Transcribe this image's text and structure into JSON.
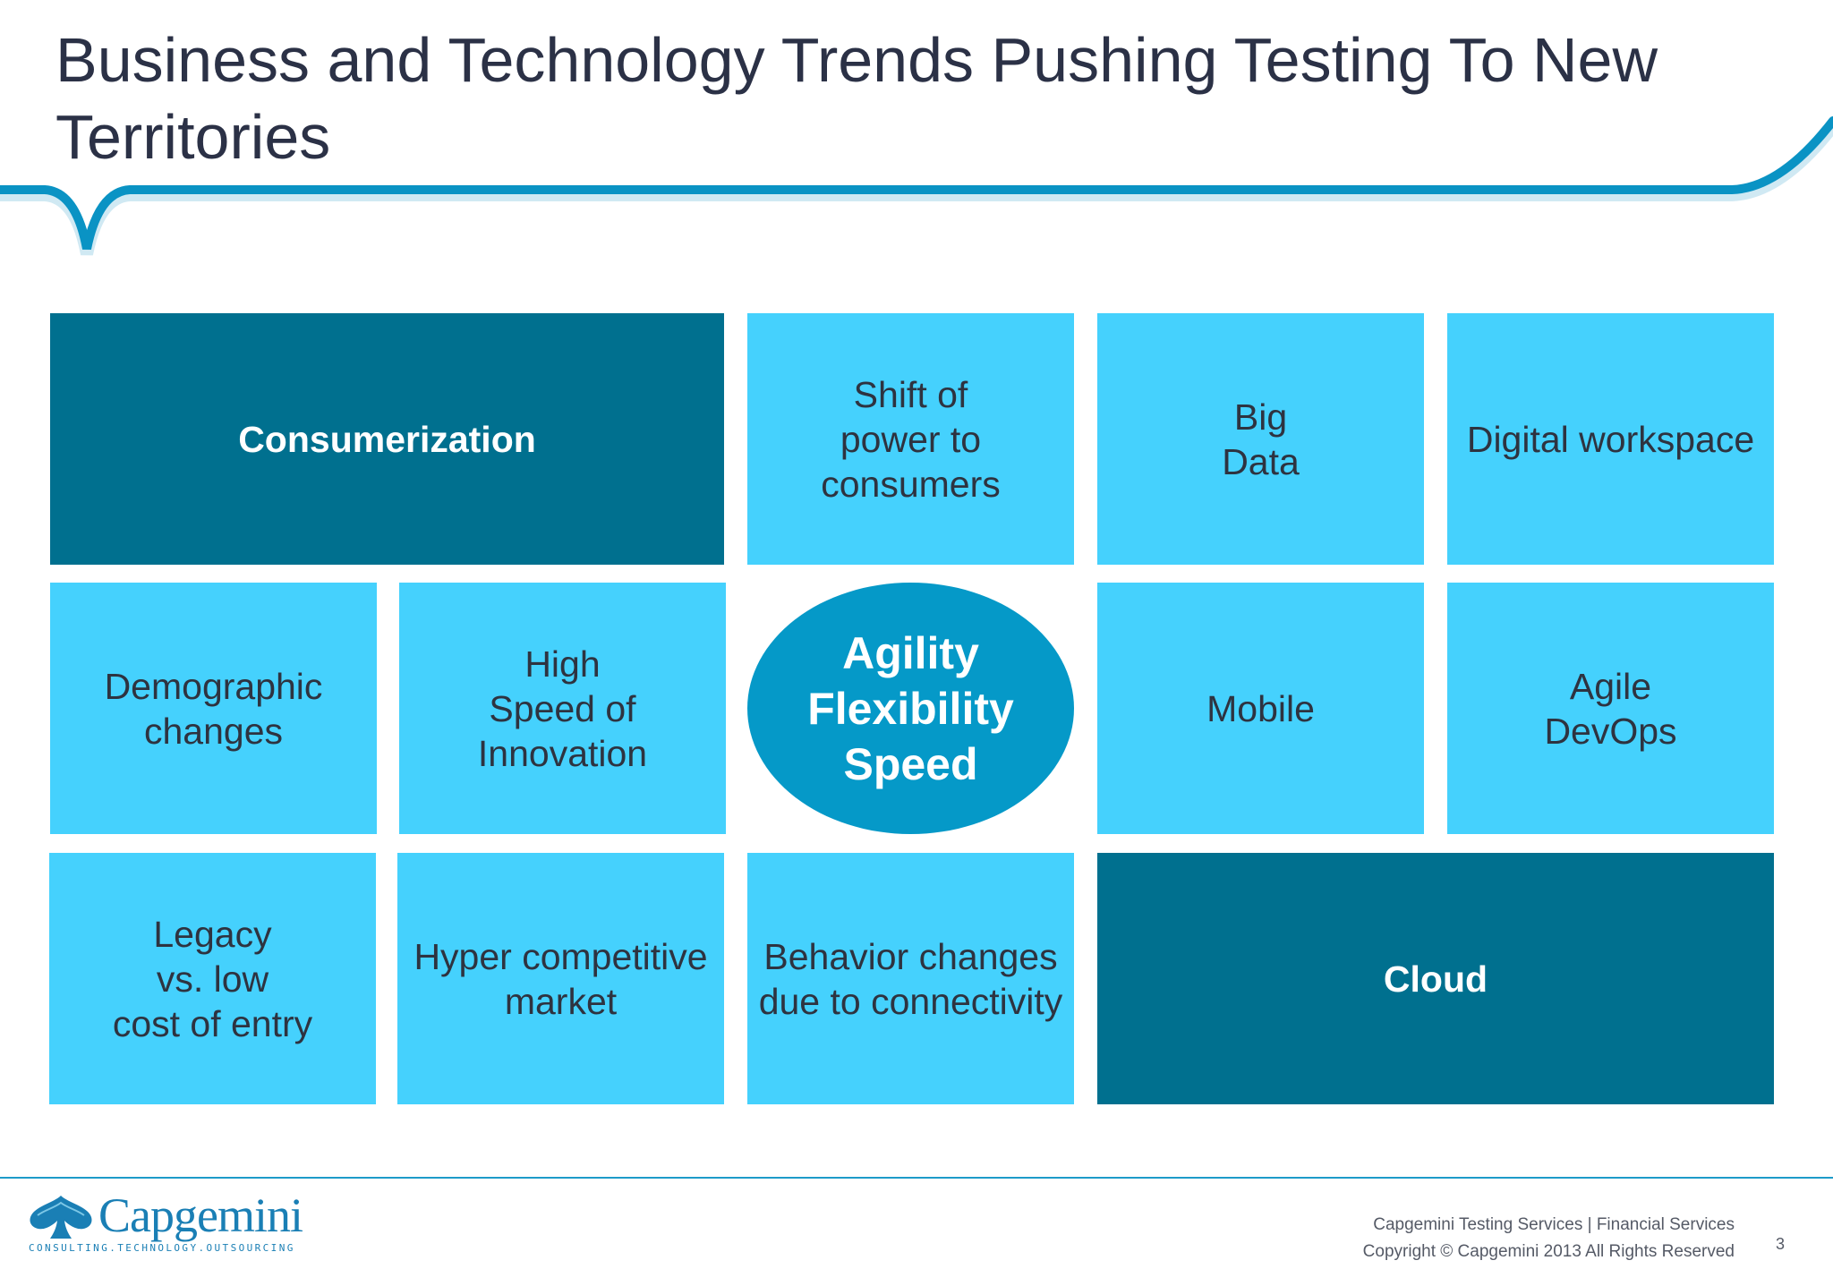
{
  "slide": {
    "title": "Business and Technology Trends Pushing Testing To New Territories",
    "tiles": {
      "consumerization": "Consumerization",
      "shift_of_power": [
        "Shift of",
        "power to",
        "consumers"
      ],
      "big_data": [
        "Big",
        "Data"
      ],
      "digital_workspace": "Digital workspace",
      "demographic_changes": [
        "Demographic",
        "changes"
      ],
      "high_speed_innovation": [
        "High",
        "Speed of",
        "Innovation"
      ],
      "mobile": "Mobile",
      "agile_devops": [
        "Agile",
        "DevOps"
      ],
      "legacy": [
        "Legacy",
        "vs. low",
        "cost of entry"
      ],
      "hyper_competitive": [
        "Hyper competitive",
        "market"
      ],
      "behavior_changes": [
        "Behavior changes",
        "due to connectivity"
      ],
      "cloud": "Cloud"
    },
    "center": [
      "Agility",
      "Flexibility",
      "Speed"
    ]
  },
  "footer": {
    "logo_text": "Capgemini",
    "logo_tagline": "CONSULTING.TECHNOLOGY.OUTSOURCING",
    "services": "Capgemini Testing Services |  Financial Services",
    "copyright": "Copyright © Capgemini 2013 All Rights Reserved",
    "page_number": "3"
  },
  "colors": {
    "tile_light": "#45d1fd",
    "tile_dark": "#00708f",
    "oval": "#0599c8",
    "header_curve": "#0a93c4",
    "title_text": "#2b3146"
  }
}
